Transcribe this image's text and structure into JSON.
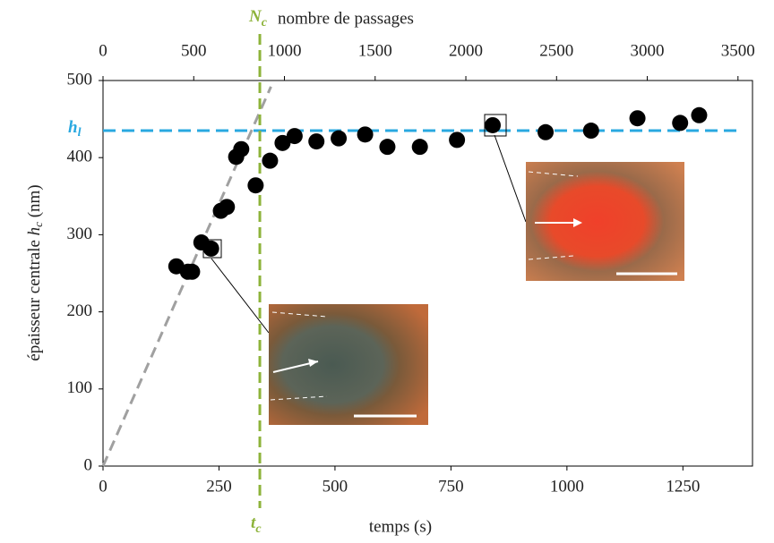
{
  "chart_data": {
    "type": "scatter",
    "xlabel": "temps (s)",
    "x2label": "nombre de passages",
    "ylabel": {
      "before": "épaisseur centrale ",
      "symbol": "h",
      "sub": "c",
      "after": " (nm)"
    },
    "x": [
      158,
      183,
      192,
      212,
      233,
      254,
      267,
      287,
      298,
      329,
      360,
      387,
      413,
      460,
      508,
      565,
      613,
      683,
      763,
      840,
      954,
      1052,
      1152,
      1244,
      1285
    ],
    "values": [
      259,
      252,
      252,
      290,
      282,
      331,
      336,
      401,
      411,
      364,
      396,
      419,
      428,
      421,
      425,
      430,
      414,
      414,
      423,
      442,
      433,
      435,
      451,
      445,
      455
    ],
    "color": "#000000",
    "xlim": [
      0,
      1400
    ],
    "xticks": [
      0,
      250,
      500,
      750,
      1000,
      1250
    ],
    "x2lim": [
      0,
      3580
    ],
    "x2ticks": [
      0,
      500,
      1000,
      1500,
      2000,
      2500,
      3000,
      3500
    ],
    "ylim": [
      0,
      500
    ],
    "yticks": [
      0,
      100,
      200,
      300,
      400,
      500
    ],
    "hline": {
      "value": 435,
      "symbol": "h",
      "sub": "l",
      "color": "#29a8e0"
    },
    "vline": {
      "value": 338,
      "symbol": "t",
      "sub": "c",
      "top_symbol": "N",
      "top_sub": "c",
      "color": "#8db33a"
    },
    "trend": {
      "x": [
        0,
        362
      ],
      "y": [
        0,
        492
      ],
      "color": "#a0a0a0"
    }
  }
}
